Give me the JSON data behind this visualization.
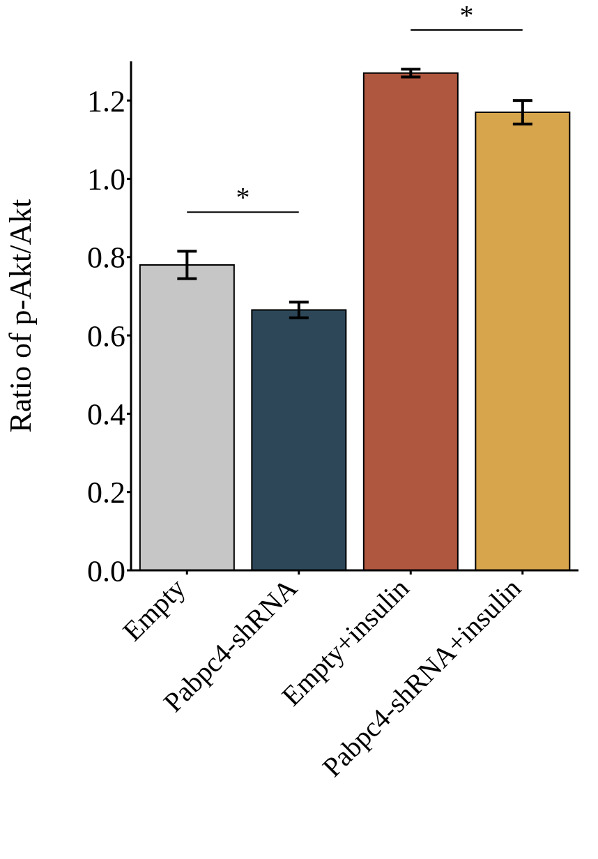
{
  "chart_data": {
    "type": "bar",
    "ylabel": "Ratio of p-Akt/Akt",
    "categories": [
      "Empty",
      "Pabpc4-shRNA",
      "Empty+insulin",
      "Pabpc4-shRNA+insulin"
    ],
    "values": [
      0.78,
      0.665,
      1.27,
      1.17
    ],
    "errors": [
      0.035,
      0.02,
      0.01,
      0.03
    ],
    "colors": [
      "#c6c6c6",
      "#2d4759",
      "#b0573f",
      "#d6a54c"
    ],
    "ylim": [
      0,
      1.3
    ],
    "yticks": [
      {
        "value": 0,
        "label": "0.0"
      },
      {
        "value": 0.2,
        "label": "0.2"
      },
      {
        "value": 0.4,
        "label": "0.4"
      },
      {
        "value": 0.6,
        "label": "0.6"
      },
      {
        "value": 0.8,
        "label": "0.8"
      },
      {
        "value": 1,
        "label": "1.0"
      },
      {
        "value": 1.2,
        "label": "1.2"
      }
    ],
    "grid": false,
    "legend": false,
    "annotations": [
      "*",
      "*"
    ]
  }
}
